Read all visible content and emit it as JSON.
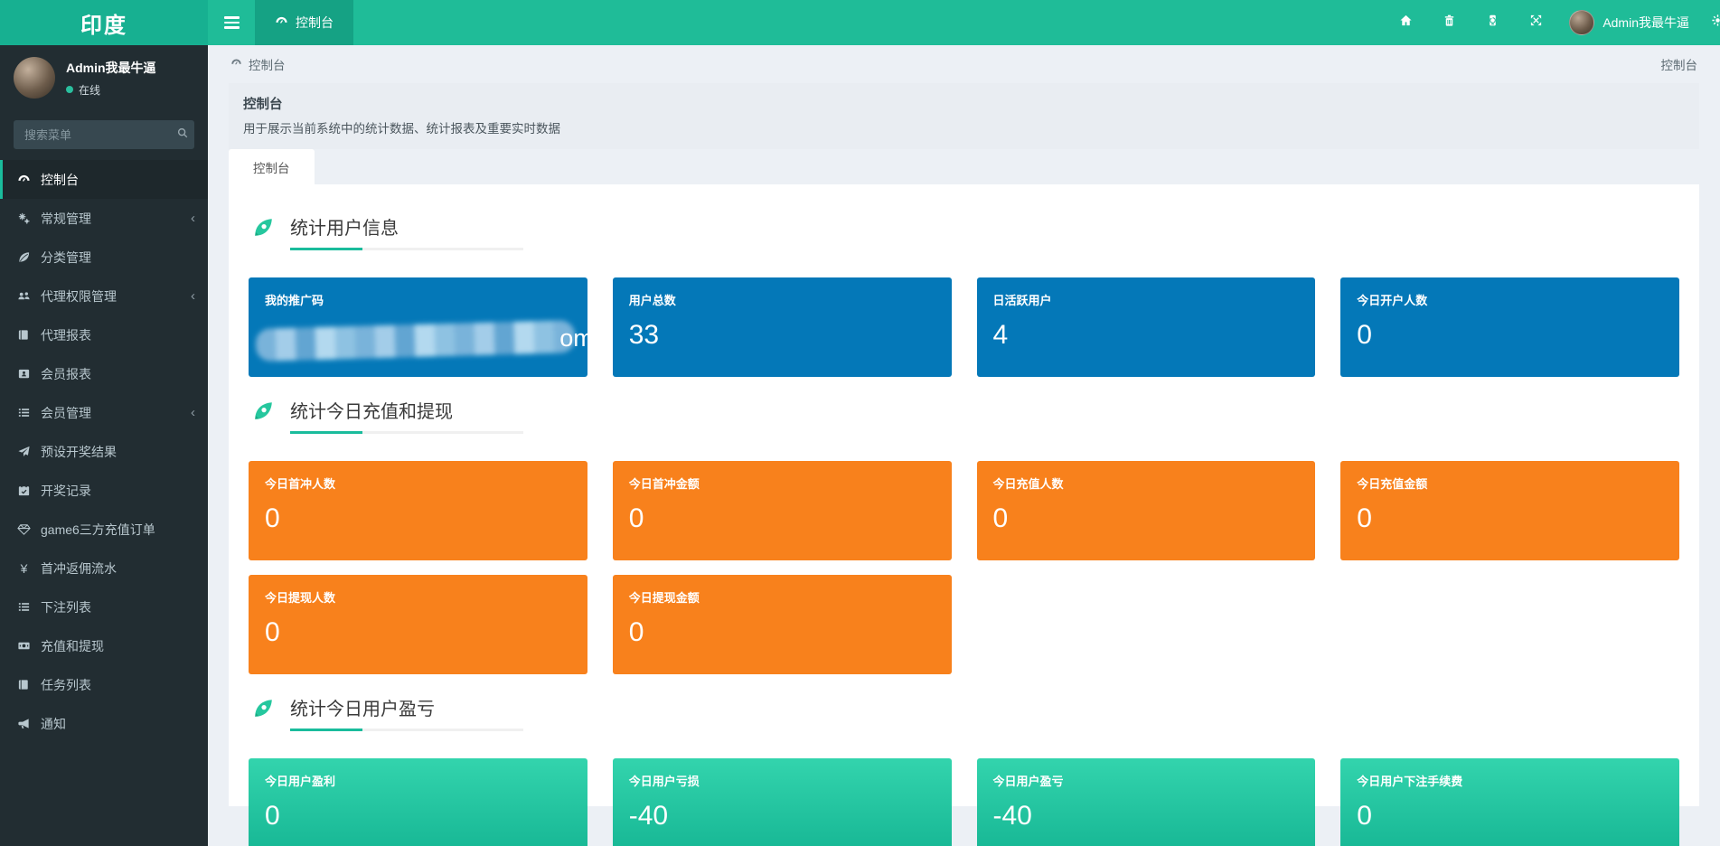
{
  "app": {
    "logo": "印度"
  },
  "topbar": {
    "tab": "控制台",
    "icons": [
      "home-icon",
      "trash-icon",
      "clear-cache-icon",
      "fullscreen-icon"
    ],
    "user_name": "Admin我最牛逼"
  },
  "sidebar": {
    "user": {
      "name": "Admin我最牛逼",
      "status": "在线"
    },
    "search_placeholder": "搜索菜单",
    "items": [
      {
        "label": "控制台",
        "icon": "gauge-icon",
        "active": true,
        "chevron": false
      },
      {
        "label": "常规管理",
        "icon": "gears-icon",
        "active": false,
        "chevron": true
      },
      {
        "label": "分类管理",
        "icon": "leaf-icon",
        "active": false,
        "chevron": false
      },
      {
        "label": "代理权限管理",
        "icon": "users-icon",
        "active": false,
        "chevron": true
      },
      {
        "label": "代理报表",
        "icon": "book-icon",
        "active": false,
        "chevron": false
      },
      {
        "label": "会员报表",
        "icon": "id-card-icon",
        "active": false,
        "chevron": false
      },
      {
        "label": "会员管理",
        "icon": "list-icon",
        "active": false,
        "chevron": true
      },
      {
        "label": "预设开奖结果",
        "icon": "paper-plane-icon",
        "active": false,
        "chevron": false
      },
      {
        "label": "开奖记录",
        "icon": "calendar-check-icon",
        "active": false,
        "chevron": false
      },
      {
        "label": "game6三方充值订单",
        "icon": "gem-icon",
        "active": false,
        "chevron": false
      },
      {
        "label": "首冲返佣流水",
        "icon": "yen-icon",
        "active": false,
        "chevron": false
      },
      {
        "label": "下注列表",
        "icon": "list-icon",
        "active": false,
        "chevron": false
      },
      {
        "label": "充值和提现",
        "icon": "money-bill-icon",
        "active": false,
        "chevron": false
      },
      {
        "label": "任务列表",
        "icon": "book-icon",
        "active": false,
        "chevron": false
      },
      {
        "label": "通知",
        "icon": "bullhorn-icon",
        "active": false,
        "chevron": false
      }
    ]
  },
  "breadcrumb": {
    "left": "控制台",
    "right": "控制台"
  },
  "page": {
    "title": "控制台",
    "subtitle": "用于展示当前系统中的统计数据、统计报表及重要实时数据",
    "tab": "控制台"
  },
  "sections": [
    {
      "title": "统计用户信息",
      "color": "blue",
      "cards": [
        {
          "label": "我的推广码",
          "masked": true,
          "visible_tail": "om"
        },
        {
          "label": "用户总数",
          "value": "33"
        },
        {
          "label": "日活跃用户",
          "value": "4"
        },
        {
          "label": "今日开户人数",
          "value": "0"
        }
      ]
    },
    {
      "title": "统计今日充值和提现",
      "color": "orange",
      "cards": [
        {
          "label": "今日首冲人数",
          "value": "0"
        },
        {
          "label": "今日首冲金额",
          "value": "0"
        },
        {
          "label": "今日充值人数",
          "value": "0"
        },
        {
          "label": "今日充值金额",
          "value": "0"
        },
        {
          "label": "今日提现人数",
          "value": "0"
        },
        {
          "label": "今日提现金额",
          "value": "0"
        }
      ]
    },
    {
      "title": "统计今日用户盈亏",
      "color": "teal",
      "cards": [
        {
          "label": "今日用户盈利",
          "value": "0"
        },
        {
          "label": "今日用户亏损",
          "value": "-40"
        },
        {
          "label": "今日用户盈亏",
          "value": "-40"
        },
        {
          "label": "今日用户下注手续费",
          "value": "0"
        }
      ]
    }
  ],
  "colors": {
    "navbar": "#1fbc98",
    "logo_bg": "#17b091",
    "nav_tab_active": "#15a284",
    "sidebar_bg": "#222d32",
    "sidebar_active_accent": "#1abc9c",
    "card_blue": "#0478b8",
    "card_orange": "#f8811c",
    "card_teal_top": "#33d4ad",
    "card_teal_bottom": "#15b593",
    "section_accent": "#1abc9c",
    "online_dot": "#2abf9e",
    "page_bg": "#ecf0f5"
  }
}
